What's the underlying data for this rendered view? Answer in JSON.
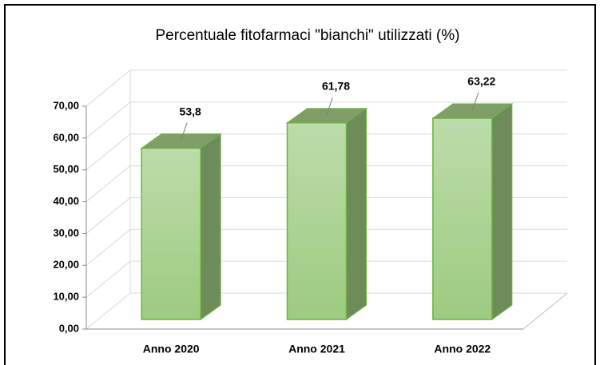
{
  "chart_data": {
    "type": "bar3d",
    "title": "Percentuale fitofarmaci \"bianchi\" utilizzati (%)",
    "categories": [
      "Anno 2020",
      "Anno 2021",
      "Anno 2022"
    ],
    "values": [
      53.8,
      61.78,
      63.22
    ],
    "value_labels": [
      "53,8",
      "61,78",
      "63,22"
    ],
    "color": "#a8d48c",
    "ylim": [
      0,
      70
    ],
    "yticks": [
      {
        "value": 0,
        "label": "0,00"
      },
      {
        "value": 10,
        "label": "10,00"
      },
      {
        "value": 20,
        "label": "20,00"
      },
      {
        "value": 30,
        "label": "30,00"
      },
      {
        "value": 40,
        "label": "40,00"
      },
      {
        "value": 50,
        "label": "50,00"
      },
      {
        "value": 60,
        "label": "60,00"
      },
      {
        "value": 70,
        "label": "70,00"
      }
    ],
    "grid": true
  }
}
